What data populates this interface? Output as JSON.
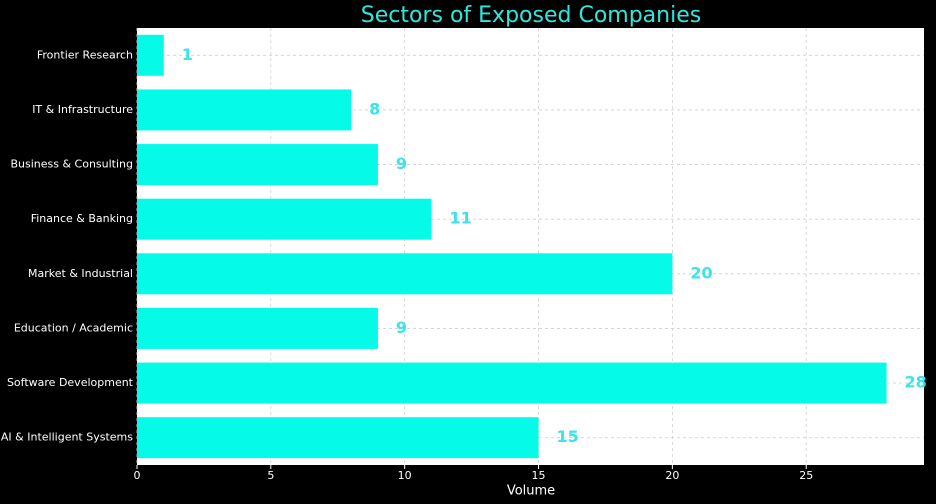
{
  "chart_data": {
    "type": "bar",
    "orientation": "horizontal",
    "title": "Sectors of Exposed Companies",
    "x_label": "Volume",
    "categories": [
      "Frontier Research",
      "IT & Infrastructure",
      "Business & Consulting",
      "Finance & Banking",
      "Market & Industrial",
      "Education / Academic",
      "Software Development",
      "AI & Intelligent Systems"
    ],
    "values": [
      1,
      8,
      9,
      11,
      20,
      9,
      28,
      15
    ],
    "color": "#05fbe8",
    "label_color": "#3ae4e8",
    "title_color": "#2fe8dc",
    "xlim": [
      0,
      29.4
    ],
    "xticks": [
      0,
      5,
      10,
      15,
      20,
      25
    ],
    "grid": true
  }
}
